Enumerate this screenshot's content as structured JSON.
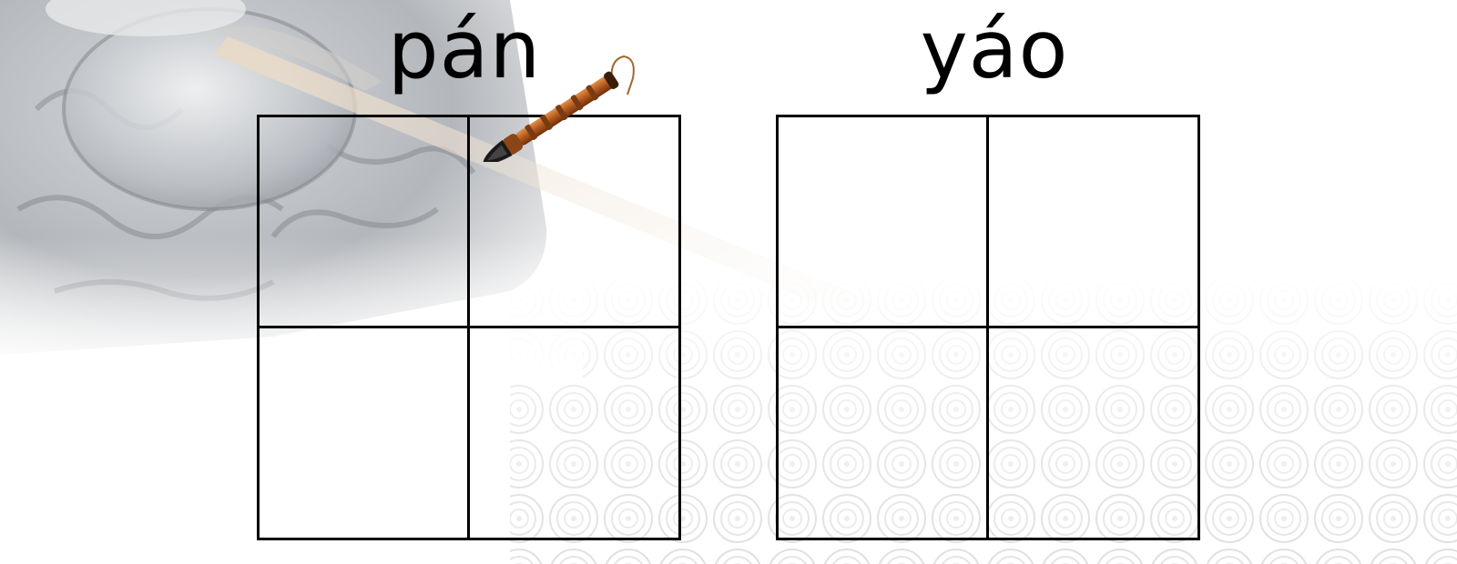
{
  "pinyin": [
    "pán",
    "yáo"
  ],
  "colors": {
    "grid_line": "#000000",
    "text": "#000000",
    "background": "#ffffff"
  },
  "icons": {
    "brush": "calligraphy-brush-icon",
    "ink_stone": "ink-stone-illustration",
    "swirl_pattern": "cloud-swirl-pattern"
  }
}
